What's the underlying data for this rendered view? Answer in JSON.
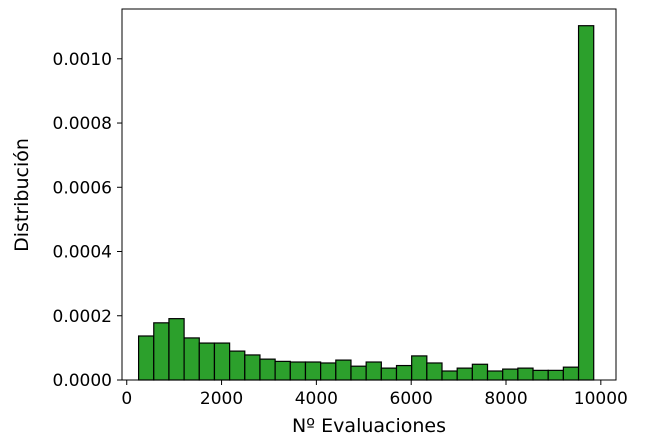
{
  "chart_data": {
    "type": "bar",
    "title": "",
    "xlabel": "Nº Evaluaciones",
    "ylabel": "Distribución",
    "bar_color": "#2ca02c",
    "edge_color": "#000000",
    "xlim": [
      -100,
      10320
    ],
    "ylim": [
      0,
      0.001155
    ],
    "grid": false,
    "legend": "none",
    "xticks": [
      0,
      2000,
      4000,
      6000,
      8000,
      10000
    ],
    "xtick_labels": [
      "0",
      "2000",
      "4000",
      "6000",
      "8000",
      "10000"
    ],
    "yticks": [
      0,
      0.0002,
      0.0004,
      0.0006,
      0.0008,
      0.001
    ],
    "ytick_labels": [
      "0.0000",
      "0.0002",
      "0.0004",
      "0.0006",
      "0.0008",
      "0.0010"
    ],
    "bin_start": 250,
    "bin_width": 320,
    "values": [
      0.000137,
      0.000178,
      0.000191,
      0.000131,
      0.000115,
      0.000115,
      9e-05,
      7.8e-05,
      6.5e-05,
      5.8e-05,
      5.6e-05,
      5.6e-05,
      5.3e-05,
      6.2e-05,
      4.3e-05,
      5.6e-05,
      3.7e-05,
      4.5e-05,
      7.5e-05,
      5.3e-05,
      2.8e-05,
      3.7e-05,
      4.9e-05,
      2.8e-05,
      3.4e-05,
      3.7e-05,
      3e-05,
      3e-05,
      4e-05,
      0.001103
    ]
  }
}
